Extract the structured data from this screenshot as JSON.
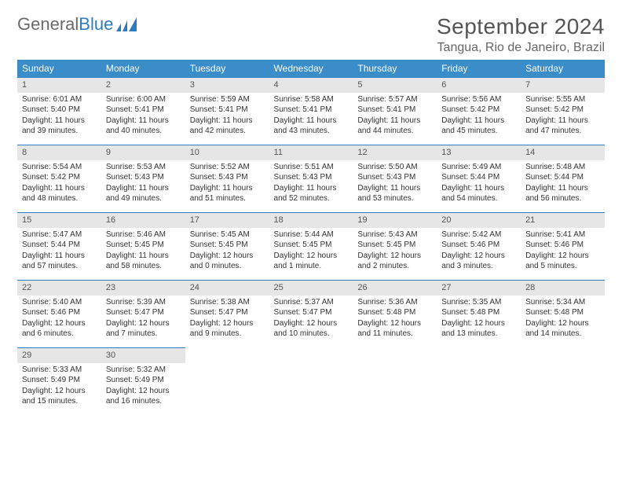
{
  "brand": {
    "part1": "General",
    "part2": "Blue"
  },
  "title": "September 2024",
  "location": "Tangua, Rio de Janeiro, Brazil",
  "colors": {
    "header_bg": "#3b8dc9",
    "header_text": "#ffffff",
    "daynum_bg": "#e6e6e6",
    "row_border": "#2f7bbf",
    "body_text": "#333333"
  },
  "weekdays": [
    "Sunday",
    "Monday",
    "Tuesday",
    "Wednesday",
    "Thursday",
    "Friday",
    "Saturday"
  ],
  "days": [
    {
      "n": 1,
      "sr": "6:01 AM",
      "ss": "5:40 PM",
      "dl": "11 hours and 39 minutes."
    },
    {
      "n": 2,
      "sr": "6:00 AM",
      "ss": "5:41 PM",
      "dl": "11 hours and 40 minutes."
    },
    {
      "n": 3,
      "sr": "5:59 AM",
      "ss": "5:41 PM",
      "dl": "11 hours and 42 minutes."
    },
    {
      "n": 4,
      "sr": "5:58 AM",
      "ss": "5:41 PM",
      "dl": "11 hours and 43 minutes."
    },
    {
      "n": 5,
      "sr": "5:57 AM",
      "ss": "5:41 PM",
      "dl": "11 hours and 44 minutes."
    },
    {
      "n": 6,
      "sr": "5:56 AM",
      "ss": "5:42 PM",
      "dl": "11 hours and 45 minutes."
    },
    {
      "n": 7,
      "sr": "5:55 AM",
      "ss": "5:42 PM",
      "dl": "11 hours and 47 minutes."
    },
    {
      "n": 8,
      "sr": "5:54 AM",
      "ss": "5:42 PM",
      "dl": "11 hours and 48 minutes."
    },
    {
      "n": 9,
      "sr": "5:53 AM",
      "ss": "5:43 PM",
      "dl": "11 hours and 49 minutes."
    },
    {
      "n": 10,
      "sr": "5:52 AM",
      "ss": "5:43 PM",
      "dl": "11 hours and 51 minutes."
    },
    {
      "n": 11,
      "sr": "5:51 AM",
      "ss": "5:43 PM",
      "dl": "11 hours and 52 minutes."
    },
    {
      "n": 12,
      "sr": "5:50 AM",
      "ss": "5:43 PM",
      "dl": "11 hours and 53 minutes."
    },
    {
      "n": 13,
      "sr": "5:49 AM",
      "ss": "5:44 PM",
      "dl": "11 hours and 54 minutes."
    },
    {
      "n": 14,
      "sr": "5:48 AM",
      "ss": "5:44 PM",
      "dl": "11 hours and 56 minutes."
    },
    {
      "n": 15,
      "sr": "5:47 AM",
      "ss": "5:44 PM",
      "dl": "11 hours and 57 minutes."
    },
    {
      "n": 16,
      "sr": "5:46 AM",
      "ss": "5:45 PM",
      "dl": "11 hours and 58 minutes."
    },
    {
      "n": 17,
      "sr": "5:45 AM",
      "ss": "5:45 PM",
      "dl": "12 hours and 0 minutes."
    },
    {
      "n": 18,
      "sr": "5:44 AM",
      "ss": "5:45 PM",
      "dl": "12 hours and 1 minute."
    },
    {
      "n": 19,
      "sr": "5:43 AM",
      "ss": "5:45 PM",
      "dl": "12 hours and 2 minutes."
    },
    {
      "n": 20,
      "sr": "5:42 AM",
      "ss": "5:46 PM",
      "dl": "12 hours and 3 minutes."
    },
    {
      "n": 21,
      "sr": "5:41 AM",
      "ss": "5:46 PM",
      "dl": "12 hours and 5 minutes."
    },
    {
      "n": 22,
      "sr": "5:40 AM",
      "ss": "5:46 PM",
      "dl": "12 hours and 6 minutes."
    },
    {
      "n": 23,
      "sr": "5:39 AM",
      "ss": "5:47 PM",
      "dl": "12 hours and 7 minutes."
    },
    {
      "n": 24,
      "sr": "5:38 AM",
      "ss": "5:47 PM",
      "dl": "12 hours and 9 minutes."
    },
    {
      "n": 25,
      "sr": "5:37 AM",
      "ss": "5:47 PM",
      "dl": "12 hours and 10 minutes."
    },
    {
      "n": 26,
      "sr": "5:36 AM",
      "ss": "5:48 PM",
      "dl": "12 hours and 11 minutes."
    },
    {
      "n": 27,
      "sr": "5:35 AM",
      "ss": "5:48 PM",
      "dl": "12 hours and 13 minutes."
    },
    {
      "n": 28,
      "sr": "5:34 AM",
      "ss": "5:48 PM",
      "dl": "12 hours and 14 minutes."
    },
    {
      "n": 29,
      "sr": "5:33 AM",
      "ss": "5:49 PM",
      "dl": "12 hours and 15 minutes."
    },
    {
      "n": 30,
      "sr": "5:32 AM",
      "ss": "5:49 PM",
      "dl": "12 hours and 16 minutes."
    }
  ],
  "labels": {
    "sunrise": "Sunrise:",
    "sunset": "Sunset:",
    "daylight": "Daylight:"
  },
  "layout": {
    "start_weekday": 0,
    "cols": 7
  }
}
